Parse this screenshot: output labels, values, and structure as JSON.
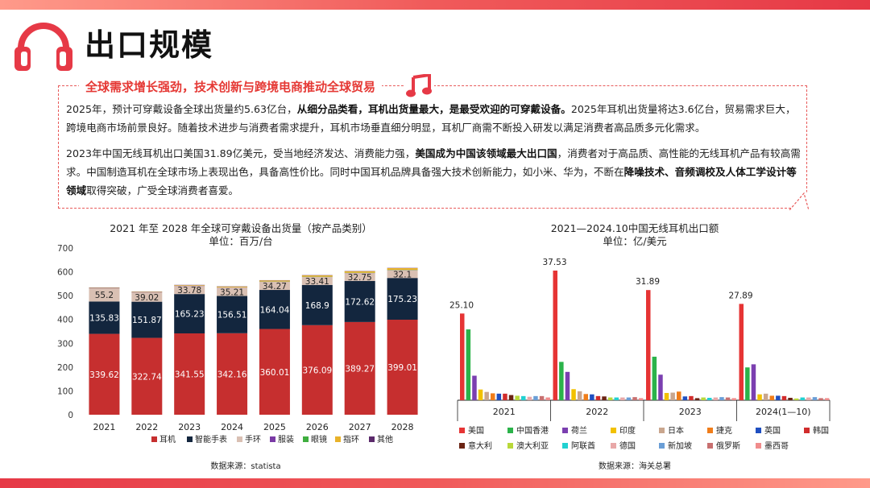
{
  "page": {
    "title": "出口规模",
    "subtitle": "全球需求增长强劲，技术创新与跨境电商推动全球贸易",
    "paragraph1": [
      {
        "t": "2025年，预计可穿戴设备全球出货量约5.63亿台，",
        "b": false
      },
      {
        "t": "从细分品类看，耳机出货量最大，是最受欢迎的可穿戴设备。",
        "b": true
      },
      {
        "t": "2025年耳机出货量将达3.6亿台，贸易需求巨大，跨境电商市场前景良好。随着技术进步与消费者需求提升，耳机市场垂直细分明显，耳机厂商需不断投入研发以满足消费者高品质多元化需求。",
        "b": false
      }
    ],
    "paragraph2": [
      {
        "t": "2023年中国无线耳机出口美国31.89亿美元，受当地经济发达、消费能力强，",
        "b": false
      },
      {
        "t": "美国成为中国该领域最大出口国",
        "b": true
      },
      {
        "t": "，消费者对于高品质、高性能的无线耳机产品有较高需求。中国制造耳机在全球市场上表现出色，具备高性价比。同时中国耳机品牌具备强大技术创新能力，如小米、华为，不断在",
        "b": false
      },
      {
        "t": "降噪技术、音频调校及人体工学设计等领域",
        "b": true
      },
      {
        "t": "取得突破，广受全球消费者喜爱。",
        "b": false
      }
    ]
  },
  "chart_data": [
    {
      "type": "bar",
      "stacked": true,
      "title": "2021 年至 2028 年全球可穿戴设备出货量（按产品类别）",
      "subtitle": "单位：百万/台",
      "categories": [
        "2021",
        "2022",
        "2023",
        "2024",
        "2025",
        "2026",
        "2027",
        "2028"
      ],
      "ylim": [
        0,
        700
      ],
      "yticks": [
        0,
        100,
        200,
        300,
        400,
        500,
        600,
        700
      ],
      "series": [
        {
          "name": "耳机",
          "color": "#c62f2f",
          "values": [
            339.62,
            322.74,
            341.55,
            342.16,
            360.01,
            376.09,
            389.27,
            399.01
          ],
          "labels": true
        },
        {
          "name": "智能手表",
          "color": "#13263e",
          "values": [
            135.83,
            151.87,
            165.23,
            156.51,
            164.04,
            168.9,
            172.62,
            175.23
          ],
          "labels": true
        },
        {
          "name": "手环",
          "color": "#d9c0b3",
          "values": [
            55.2,
            39.02,
            33.78,
            35.21,
            34.27,
            33.41,
            32.75,
            32.1
          ],
          "labels": true
        },
        {
          "name": "服装",
          "color": "#7a3aa5",
          "values": [
            0.5,
            0.5,
            0.5,
            0.5,
            0.5,
            0.5,
            0.5,
            0.5
          ],
          "labels": false
        },
        {
          "name": "眼镜",
          "color": "#3fae3f",
          "values": [
            0.3,
            0.3,
            0.4,
            0.5,
            0.6,
            0.8,
            1.0,
            1.2
          ],
          "labels": false
        },
        {
          "name": "指环",
          "color": "#e8b22a",
          "values": [
            1.5,
            1.8,
            2.5,
            3.5,
            4.5,
            5.5,
            6.5,
            7.5
          ],
          "labels": false
        },
        {
          "name": "其他",
          "color": "#5b2a6b",
          "values": [
            1.5,
            1.2,
            1.2,
            1.0,
            1.0,
            1.0,
            1.0,
            1.0
          ],
          "labels": false
        }
      ],
      "legend": "bottom",
      "source": "数据来源：statista"
    },
    {
      "type": "bar",
      "title": "2021—2024.10中国无线耳机出口额",
      "subtitle": "单位：亿/美元",
      "categories": [
        "2021",
        "2022",
        "2023",
        "2024(1—10)"
      ],
      "top_labels": [
        "25.10",
        "37.53",
        "31.89",
        "27.89"
      ],
      "ylim": [
        0,
        40
      ],
      "series": [
        {
          "name": "美国",
          "color": "#e63434",
          "values": [
            25.1,
            37.53,
            31.89,
            27.89
          ]
        },
        {
          "name": "中国香港",
          "color": "#2bb34a",
          "values": [
            20.5,
            11.1,
            12.6,
            9.5
          ]
        },
        {
          "name": "荷兰",
          "color": "#7b3fb0",
          "values": [
            7.1,
            8.2,
            7.4,
            10.4
          ]
        },
        {
          "name": "印度",
          "color": "#f2c100",
          "values": [
            3.1,
            3.2,
            2.1,
            1.7
          ]
        },
        {
          "name": "日本",
          "color": "#c9a68e",
          "values": [
            2.4,
            2.6,
            2.2,
            1.9
          ]
        },
        {
          "name": "捷克",
          "color": "#f07d1a",
          "values": [
            2.0,
            1.8,
            2.5,
            1.3
          ]
        },
        {
          "name": "英国",
          "color": "#1f4fc1",
          "values": [
            1.9,
            1.7,
            1.1,
            1.3
          ]
        },
        {
          "name": "韩国",
          "color": "#d12c2c",
          "values": [
            1.9,
            1.2,
            1.2,
            1.2
          ]
        },
        {
          "name": "意大利",
          "color": "#6b2413",
          "values": [
            1.5,
            1.1,
            0.6,
            0.7
          ]
        },
        {
          "name": "澳大利亚",
          "color": "#b9d83a",
          "values": [
            1.3,
            0.8,
            0.8,
            0.5
          ]
        },
        {
          "name": "阿联酋",
          "color": "#22d1d1",
          "values": [
            1.2,
            0.8,
            0.7,
            0.8
          ]
        },
        {
          "name": "德国",
          "color": "#e8a8a8",
          "values": [
            1.0,
            0.8,
            0.8,
            0.8
          ]
        },
        {
          "name": "新加坡",
          "color": "#6a9ed6",
          "values": [
            1.2,
            0.8,
            0.9,
            0.9
          ]
        },
        {
          "name": "俄罗斯",
          "color": "#c87070",
          "values": [
            1.2,
            0.9,
            0.8,
            0.6
          ]
        },
        {
          "name": "墨西哥",
          "color": "#f08c8c",
          "values": [
            0.8,
            0.6,
            0.6,
            0.6
          ]
        }
      ],
      "legend": "bottom",
      "source": "数据来源：海关总署"
    }
  ]
}
